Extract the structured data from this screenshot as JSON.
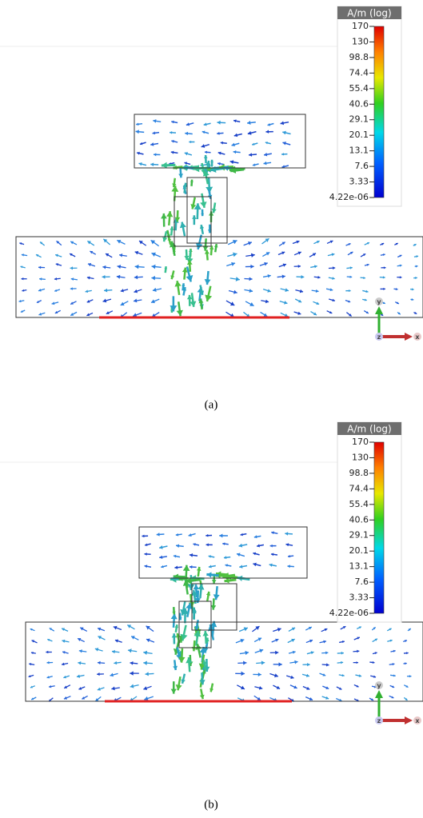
{
  "panels": [
    {
      "caption": "(a)",
      "colorbar": {
        "title": "A/m (log)",
        "labels": [
          "170",
          "130",
          "98.8",
          "74.4",
          "55.4",
          "40.6",
          "29.1",
          "20.1",
          "13.1",
          "7.6",
          "3.33",
          "4.22e-06"
        ]
      },
      "axes": {
        "y": "y",
        "x": "x",
        "z": "z"
      }
    },
    {
      "caption": "(b)",
      "colorbar": {
        "title": "A/m (log)",
        "labels": [
          "170",
          "130",
          "98.8",
          "74.4",
          "55.4",
          "40.6",
          "29.1",
          "20.1",
          "13.1",
          "7.6",
          "3.33",
          "4.22e-06"
        ]
      },
      "axes": {
        "y": "y",
        "x": "x",
        "z": "z"
      }
    }
  ]
}
